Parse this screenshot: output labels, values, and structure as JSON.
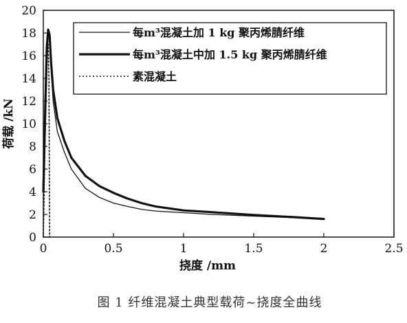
{
  "chart_data": {
    "type": "line",
    "title": "",
    "caption": "图 1 纤维混凝土典型载荷~挠度全曲线",
    "xlabel": "挠度 /mm",
    "ylabel": "荷载 /kN",
    "xlim": [
      0,
      2.5
    ],
    "ylim": [
      0,
      20
    ],
    "xticks": [
      "0",
      "0.5",
      "1",
      "1.5",
      "2",
      "2.5"
    ],
    "yticks": [
      "0",
      "2",
      "4",
      "6",
      "8",
      "10",
      "12",
      "14",
      "16",
      "18",
      "20"
    ],
    "grid": false,
    "legend_position": "top-right",
    "series": [
      {
        "name": "每m³混凝土加 1 kg 聚丙烯腈纤维",
        "style": "thin-solid",
        "x": [
          0,
          0.005,
          0.015,
          0.025,
          0.035,
          0.045,
          0.055,
          0.07,
          0.1,
          0.15,
          0.2,
          0.3,
          0.4,
          0.5,
          0.6,
          0.7,
          0.8,
          1.0,
          1.2,
          1.5,
          1.8,
          2.0
        ],
        "y": [
          4.2,
          6.0,
          10.5,
          15.5,
          17.6,
          17.8,
          15.0,
          12.0,
          9.3,
          7.5,
          6.0,
          4.3,
          3.5,
          3.0,
          2.7,
          2.45,
          2.3,
          2.15,
          2.0,
          1.85,
          1.7,
          1.55
        ]
      },
      {
        "name": "每m³混凝土中加 1.5 kg 聚丙烯腈纤维",
        "style": "thick-solid",
        "x": [
          0,
          0.005,
          0.015,
          0.025,
          0.035,
          0.045,
          0.055,
          0.07,
          0.1,
          0.15,
          0.2,
          0.3,
          0.4,
          0.5,
          0.6,
          0.7,
          0.8,
          1.0,
          1.2,
          1.5,
          1.8,
          2.0
        ],
        "y": [
          4.0,
          6.5,
          12.0,
          16.8,
          18.3,
          17.8,
          15.5,
          13.0,
          10.5,
          8.5,
          7.0,
          5.4,
          4.5,
          3.9,
          3.4,
          3.0,
          2.7,
          2.35,
          2.2,
          1.95,
          1.75,
          1.6
        ]
      },
      {
        "name": "素混凝土",
        "style": "dotted",
        "x": [
          0,
          0.005,
          0.01,
          0.02,
          0.03,
          0.035,
          0.04,
          0.045
        ],
        "y": [
          0,
          3.0,
          7.0,
          12.5,
          16.5,
          17.0,
          14.0,
          0
        ]
      }
    ]
  }
}
